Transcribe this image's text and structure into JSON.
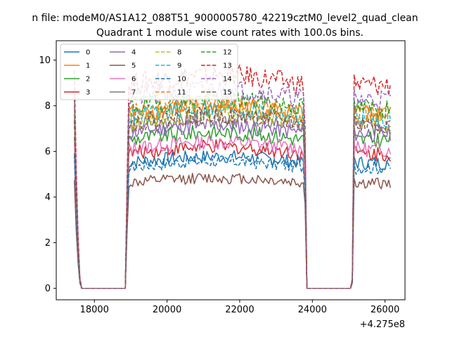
{
  "chart_data": {
    "type": "line",
    "suptitle": "n file: modeM0/AS1A12_088T51_9000005780_42219cztM0_level2_quad_clean",
    "title": "Quadrant 1 module wise count rates with 100.0s bins.",
    "xlabel": "",
    "ylabel": "",
    "x_offset_label": "+4.275e8",
    "xlim": [
      16950,
      26550
    ],
    "ylim": [
      -0.5,
      10.85
    ],
    "x_ticks": [
      18000,
      20000,
      22000,
      24000,
      26000
    ],
    "x_tick_labels": [
      "18000",
      "20000",
      "22000",
      "24000",
      "26000"
    ],
    "y_ticks": [
      0,
      2,
      4,
      6,
      8,
      10
    ],
    "y_tick_labels": [
      "0",
      "2",
      "4",
      "6",
      "8",
      "10"
    ],
    "grid": false,
    "legend_position": "top-left",
    "legend_columns": 4,
    "segments": [
      {
        "x_start": 17450,
        "x_end": 17650
      },
      {
        "x_start": 18850,
        "x_end": 23850
      },
      {
        "x_start": 25050,
        "x_end": 26150
      }
    ],
    "series": [
      {
        "name": "0",
        "color": "#1f77b4",
        "dash": "solid",
        "level": 5.5,
        "start": 5.9
      },
      {
        "name": "1",
        "color": "#ff7f0e",
        "dash": "solid",
        "level": 7.6,
        "start": 8.0
      },
      {
        "name": "2",
        "color": "#2ca02c",
        "dash": "solid",
        "level": 6.5,
        "start": 6.8
      },
      {
        "name": "3",
        "color": "#d62728",
        "dash": "solid",
        "level": 5.9,
        "start": 6.2
      },
      {
        "name": "4",
        "color": "#9467bd",
        "dash": "solid",
        "level": 6.8,
        "start": 7.2
      },
      {
        "name": "5",
        "color": "#8c564b",
        "dash": "solid",
        "level": 4.6,
        "start": 4.6
      },
      {
        "name": "6",
        "color": "#e377c2",
        "dash": "solid",
        "level": 6.1,
        "start": 6.4
      },
      {
        "name": "7",
        "color": "#7f7f7f",
        "dash": "solid",
        "level": 7.1,
        "start": 7.5
      },
      {
        "name": "8",
        "color": "#bcbd22",
        "dash": "dashed",
        "level": 7.3,
        "start": 7.7
      },
      {
        "name": "9",
        "color": "#17becf",
        "dash": "dashed",
        "level": 7.5,
        "start": 7.9
      },
      {
        "name": "10",
        "color": "#1f77b4",
        "dash": "dashed",
        "level": 5.3,
        "start": 5.6
      },
      {
        "name": "11",
        "color": "#ff7f0e",
        "dash": "dashed",
        "level": 7.7,
        "start": 8.1
      },
      {
        "name": "12",
        "color": "#2ca02c",
        "dash": "dashed",
        "level": 7.9,
        "start": 8.3
      },
      {
        "name": "13",
        "color": "#d62728",
        "dash": "dashed",
        "level": 8.9,
        "start": 9.6
      },
      {
        "name": "14",
        "color": "#9467bd",
        "dash": "dashed",
        "level": 8.3,
        "start": 8.8
      },
      {
        "name": "15",
        "color": "#8c564b",
        "dash": "dashed",
        "level": 7.2,
        "start": 7.6
      }
    ]
  }
}
